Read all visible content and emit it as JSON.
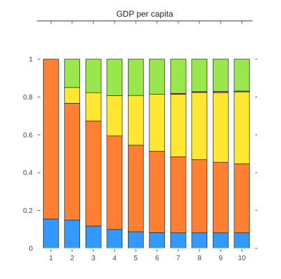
{
  "chart_data": {
    "type": "bar",
    "stacked": true,
    "title": "GDP per capita",
    "xlabel": "",
    "ylabel": "",
    "categories": [
      "1",
      "2",
      "3",
      "4",
      "5",
      "6",
      "7",
      "8",
      "9",
      "10"
    ],
    "ylim": [
      0,
      1
    ],
    "yticks": [
      "0",
      "0.2",
      "0.4",
      "0.6",
      "0.8",
      "1"
    ],
    "grid": false,
    "series": [
      {
        "color": "#3399ff",
        "values": [
          0.155,
          0.15,
          0.118,
          0.1,
          0.088,
          0.083,
          0.082,
          0.082,
          0.082,
          0.082
        ]
      },
      {
        "color": "#ff8033",
        "values": [
          0.845,
          0.617,
          0.555,
          0.495,
          0.457,
          0.43,
          0.402,
          0.387,
          0.373,
          0.365
        ]
      },
      {
        "color": "#ffe733",
        "values": [
          0.0,
          0.083,
          0.15,
          0.212,
          0.263,
          0.302,
          0.33,
          0.355,
          0.368,
          0.38
        ]
      },
      {
        "color": "#c7489b",
        "values": [
          0.0,
          0.0,
          0.0,
          0.0,
          0.0,
          0.0,
          0.005,
          0.004,
          0.006,
          0.004
        ]
      },
      {
        "color": "#99e64d",
        "values": [
          0.0,
          0.15,
          0.177,
          0.193,
          0.192,
          0.185,
          0.181,
          0.172,
          0.171,
          0.169
        ]
      }
    ]
  }
}
